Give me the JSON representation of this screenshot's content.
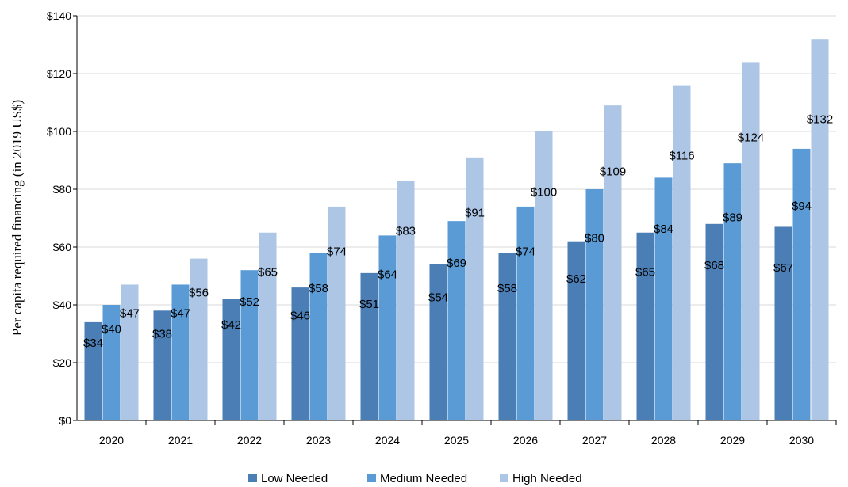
{
  "chart_data": {
    "type": "bar",
    "title": "",
    "xlabel": "",
    "ylabel": "Per capita required  financing  (in 2019 US$)",
    "ylim": [
      0,
      140
    ],
    "yticks": [
      0,
      20,
      40,
      60,
      80,
      100,
      120,
      140
    ],
    "ytick_labels": [
      "$0",
      "$20",
      "$40",
      "$60",
      "$80",
      "$100",
      "$120",
      "$140"
    ],
    "grid": true,
    "legend_position": "bottom",
    "categories": [
      "2020",
      "2021",
      "2022",
      "2023",
      "2024",
      "2025",
      "2026",
      "2027",
      "2028",
      "2029",
      "2030"
    ],
    "series": [
      {
        "name": "Low Needed",
        "color": "#4a7eb5",
        "values": [
          34,
          38,
          42,
          46,
          51,
          54,
          58,
          62,
          65,
          68,
          67
        ],
        "labels": [
          "$34",
          "$38",
          "$42",
          "$46",
          "$51",
          "$54",
          "$58",
          "$62",
          "$65",
          "$68",
          "$67"
        ]
      },
      {
        "name": "Medium Needed",
        "color": "#5b9bd5",
        "values": [
          40,
          47,
          52,
          58,
          64,
          69,
          74,
          80,
          84,
          89,
          94
        ],
        "labels": [
          "$40",
          "$47",
          "$52",
          "$58",
          "$64",
          "$69",
          "$74",
          "$80",
          "$84",
          "$89",
          "$94"
        ]
      },
      {
        "name": "High Needed",
        "color": "#adc6e6",
        "values": [
          47,
          56,
          65,
          74,
          83,
          91,
          100,
          109,
          116,
          124,
          132
        ],
        "labels": [
          "$47",
          "$56",
          "$65",
          "$74",
          "$83",
          "$91",
          "$100",
          "$109",
          "$116",
          "$124",
          "$132"
        ]
      }
    ]
  }
}
